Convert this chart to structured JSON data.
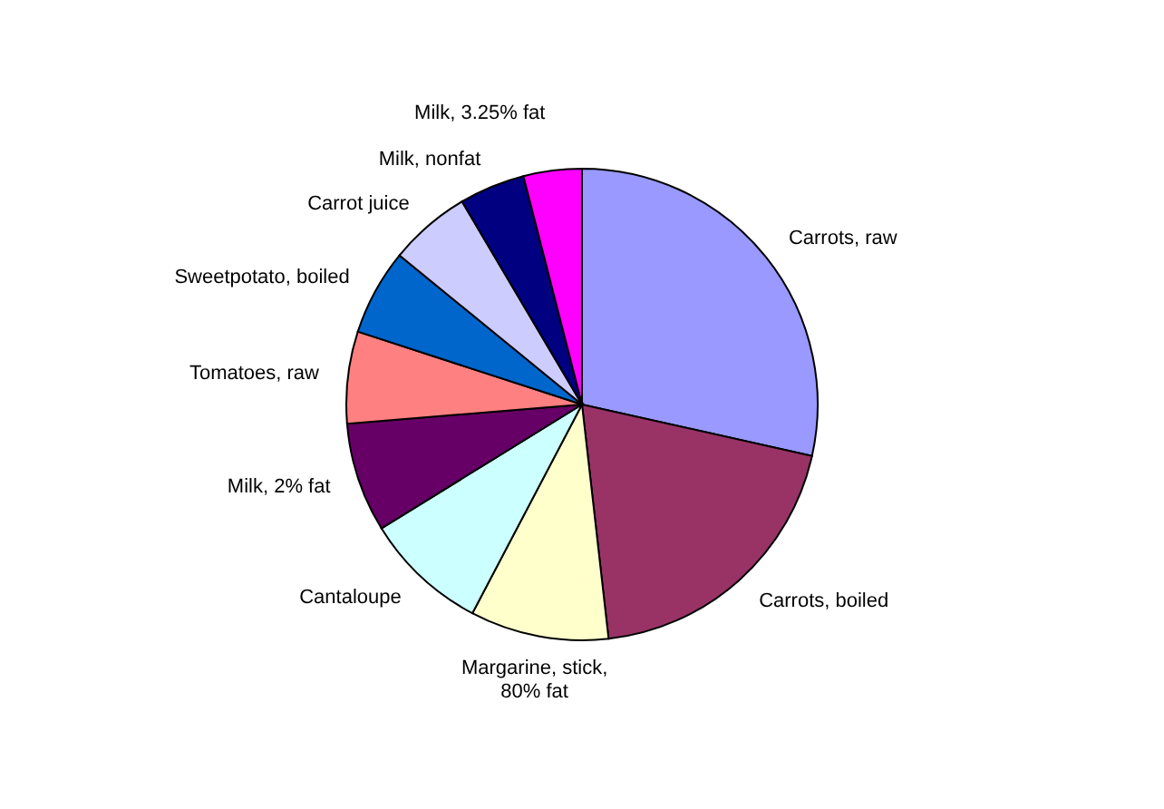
{
  "chart_data": {
    "type": "pie",
    "categories": [
      "Carrots, raw",
      "Carrots, boiled",
      "Margarine, stick, 80% fat",
      "Cantaloupe",
      "Milk, 2% fat",
      "Tomatoes, raw",
      "Sweetpotato, boiled",
      "Carrot juice",
      "Milk, nonfat",
      "Milk, 3.25% fat"
    ],
    "values": [
      28.5,
      19.7,
      9.5,
      8.5,
      7.5,
      6.3,
      5.9,
      5.6,
      4.5,
      4.0
    ],
    "colors": [
      "#9999ff",
      "#993366",
      "#ffffcc",
      "#ccffff",
      "#660066",
      "#ff8080",
      "#0066cc",
      "#ccccff",
      "#000080",
      "#ff00ff"
    ]
  }
}
